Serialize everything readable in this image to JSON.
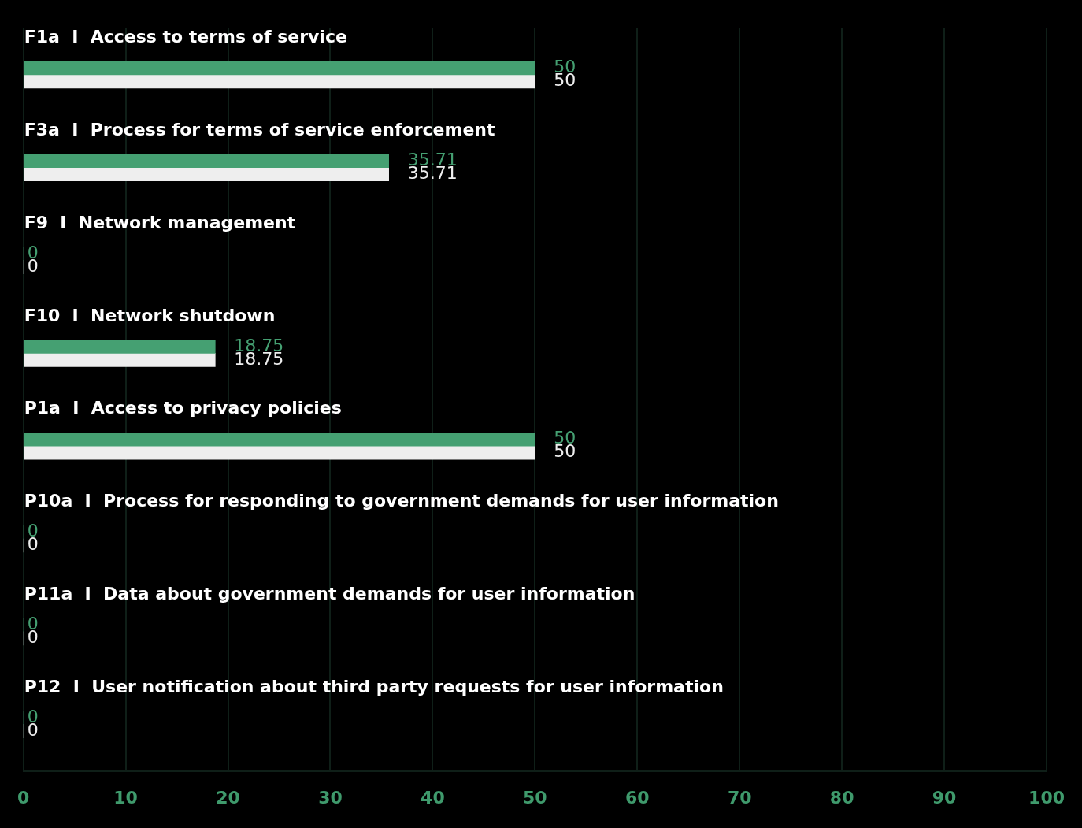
{
  "chart_data": {
    "type": "bar",
    "orientation": "horizontal",
    "categories": [
      "F1a  I  Access to terms of service",
      "F3a  I  Process for terms of service enforcement",
      "F9  I  Network management",
      "F10  I  Network shutdown",
      "P1a  I  Access to privacy policies",
      "P10a  I  Process for responding to government demands for user information",
      "P11a  I  Data about government demands for user information",
      "P12  I  User notification about third party requests for user information"
    ],
    "series": [
      {
        "color": "#45a072",
        "values": [
          50,
          35.71,
          0,
          18.75,
          50,
          0,
          0,
          0
        ]
      },
      {
        "color": "#eeeeee",
        "values": [
          50,
          35.71,
          0,
          18.75,
          50,
          0,
          0,
          0
        ]
      }
    ],
    "xlim": [
      0,
      100
    ],
    "xticks": [
      0,
      10,
      20,
      30,
      40,
      50,
      60,
      70,
      80,
      90,
      100
    ],
    "grid": "x",
    "legend": false,
    "data_labels": true
  }
}
